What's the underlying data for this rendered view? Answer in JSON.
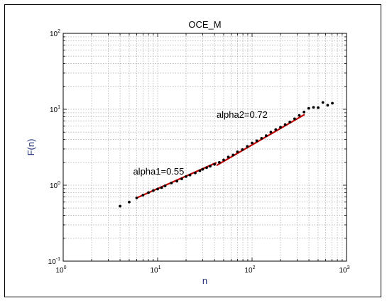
{
  "chart_data": {
    "type": "scatter",
    "title": "OCE_M",
    "xlabel": "n",
    "ylabel": "F(n)",
    "xscale": "log",
    "yscale": "log",
    "xlim": [
      1,
      1000
    ],
    "ylim": [
      0.1,
      100
    ],
    "grid": true,
    "x_ticks": [
      {
        "value": 1,
        "base": "10",
        "exp": "0"
      },
      {
        "value": 10,
        "base": "10",
        "exp": "1"
      },
      {
        "value": 100,
        "base": "10",
        "exp": "2"
      },
      {
        "value": 1000,
        "base": "10",
        "exp": "3"
      }
    ],
    "y_ticks": [
      {
        "value": 0.1,
        "base": "10",
        "exp": "-1"
      },
      {
        "value": 1,
        "base": "10",
        "exp": "0"
      },
      {
        "value": 10,
        "base": "10",
        "exp": "1"
      },
      {
        "value": 100,
        "base": "10",
        "exp": "2"
      }
    ],
    "points": {
      "color": "#000000",
      "x": [
        4,
        5,
        6,
        7,
        8,
        9,
        10,
        11,
        12,
        14,
        16,
        18,
        20,
        22,
        25,
        28,
        30,
        33,
        36,
        40,
        45,
        50,
        56,
        63,
        70,
        79,
        89,
        100,
        112,
        126,
        141,
        158,
        178,
        200,
        224,
        251,
        282,
        316,
        355,
        398,
        447,
        501,
        562,
        631,
        708
      ],
      "y": [
        0.53,
        0.6,
        0.68,
        0.74,
        0.8,
        0.85,
        0.89,
        0.93,
        0.98,
        1.07,
        1.13,
        1.21,
        1.3,
        1.36,
        1.45,
        1.55,
        1.62,
        1.7,
        1.78,
        1.88,
        2.0,
        2.15,
        2.35,
        2.5,
        2.75,
        2.95,
        3.25,
        3.6,
        3.85,
        4.15,
        4.5,
        5.0,
        5.4,
        5.8,
        6.3,
        6.8,
        7.5,
        8.3,
        9.2,
        10.3,
        10.6,
        10.5,
        12.3,
        11.3,
        12.0
      ]
    },
    "fits": [
      {
        "label": "alpha1=0.55",
        "slope": 0.55,
        "x_range": [
          6,
          42
        ],
        "y_start": 0.68,
        "color": "#c00000",
        "label_x": 5.5,
        "label_y": 1.38
      },
      {
        "label": "alpha2=0.72",
        "slope": 0.72,
        "x_range": [
          42,
          360
        ],
        "y_start": 1.82,
        "color": "#c00000",
        "label_x": 42,
        "label_y": 7.7
      }
    ]
  }
}
